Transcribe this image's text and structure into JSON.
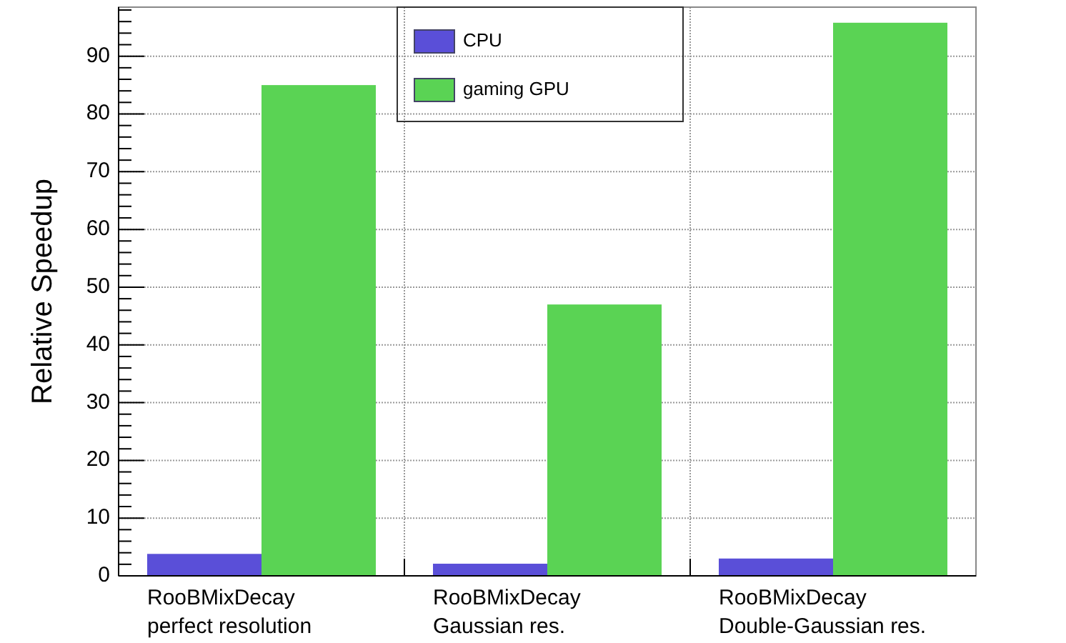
{
  "chart_data": {
    "type": "bar",
    "ylabel": "Relative Speedup",
    "categories": [
      "RooBMixDecay\nperfect resolution",
      "RooBMixDecay\nGaussian res.",
      "RooBMixDecay\nDouble-Gaussian res."
    ],
    "series": [
      {
        "name": "CPU",
        "color": "#5a4fd8",
        "values": [
          3.8,
          2.1,
          3.0
        ]
      },
      {
        "name": "gaming GPU",
        "color": "#5ad354",
        "values": [
          85,
          47.0,
          95.8
        ]
      }
    ],
    "ylim": [
      0,
      98.5
    ],
    "yticks": [
      0,
      {
        "value": 2,
        "label": null
      },
      {
        "value": 4,
        "label": null
      },
      {
        "value": 6,
        "label": null
      },
      {
        "value": 8,
        "label": null
      },
      10,
      {
        "value": 12,
        "label": null
      },
      {
        "value": 14,
        "label": null
      },
      {
        "value": 16,
        "label": null
      },
      {
        "value": 18,
        "label": null
      },
      20,
      {
        "value": 22,
        "label": null
      },
      {
        "value": 24,
        "label": null
      },
      {
        "value": 26,
        "label": null
      },
      {
        "value": 28,
        "label": null
      },
      30,
      {
        "value": 32,
        "label": null
      },
      {
        "value": 34,
        "label": null
      },
      {
        "value": 36,
        "label": null
      },
      {
        "value": 38,
        "label": null
      },
      40,
      {
        "value": 42,
        "label": null
      },
      {
        "value": 44,
        "label": null
      },
      {
        "value": 46,
        "label": null
      },
      {
        "value": 48,
        "label": null
      },
      50,
      {
        "value": 52,
        "label": null
      },
      {
        "value": 54,
        "label": null
      },
      {
        "value": 56,
        "label": null
      },
      {
        "value": 58,
        "label": null
      },
      60,
      {
        "value": 62,
        "label": null
      },
      {
        "value": 64,
        "label": null
      },
      {
        "value": 66,
        "label": null
      },
      {
        "value": 68,
        "label": null
      },
      70,
      {
        "value": 72,
        "label": null
      },
      {
        "value": 74,
        "label": null
      },
      {
        "value": 76,
        "label": null
      },
      {
        "value": 78,
        "label": null
      },
      80,
      {
        "value": 82,
        "label": null
      },
      {
        "value": 84,
        "label": null
      },
      {
        "value": 86,
        "label": null
      },
      {
        "value": 88,
        "label": null
      },
      90,
      {
        "value": 92,
        "label": null
      },
      {
        "value": 94,
        "label": null
      },
      {
        "value": 96,
        "label": null
      },
      {
        "value": 98,
        "label": null
      }
    ],
    "grid": true,
    "legend": "top"
  }
}
